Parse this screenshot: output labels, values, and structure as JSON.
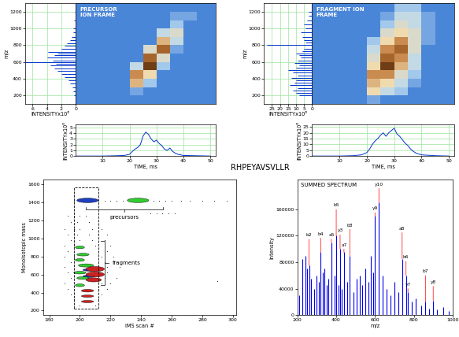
{
  "title": "RHPEYAVSVLLR",
  "chart_data": [
    {
      "type": "bar",
      "orientation": "horizontal",
      "color": "#0033cc",
      "grid": true,
      "xlabel": "INTENSITYx10⁶",
      "ylabel": "m/z",
      "x": [
        200,
        250,
        300,
        340,
        380,
        420,
        460,
        490,
        520,
        560,
        580,
        600,
        620,
        650,
        680,
        700,
        720,
        760,
        790,
        820,
        860,
        900,
        950,
        1000,
        1100,
        1200
      ],
      "values": [
        0.2,
        0.3,
        0.5,
        0.8,
        1.0,
        1.5,
        2.0,
        2.5,
        3.0,
        3.5,
        2.8,
        7.0,
        3.2,
        4.0,
        3.0,
        2.5,
        3.8,
        2.0,
        1.5,
        1.2,
        0.8,
        0.6,
        0.4,
        0.3,
        0.2,
        0.1
      ],
      "xlim": [
        7,
        0
      ],
      "xticks": [
        6,
        4,
        2,
        0
      ],
      "ylim": [
        100,
        1300
      ],
      "yticks": [
        200,
        400,
        600,
        800,
        1000,
        1200
      ]
    },
    {
      "type": "heatmap",
      "title": "PRECURSOR\nION FRAME",
      "tick_labels": false,
      "xlim": [
        0,
        52
      ],
      "ylim": [
        100,
        1300
      ],
      "color_range": [
        0,
        1
      ],
      "x_bins": [
        0,
        5,
        10,
        15,
        20,
        25,
        30,
        35,
        40,
        45,
        50
      ],
      "y_bins": [
        100,
        200,
        300,
        400,
        500,
        600,
        700,
        800,
        900,
        1000,
        1100,
        1200,
        1300
      ],
      "cells": [
        [
          0,
          0,
          0,
          0,
          0,
          0,
          0,
          0,
          0,
          0
        ],
        [
          0,
          0,
          0,
          0,
          0.1,
          0,
          0,
          0,
          0,
          0
        ],
        [
          0,
          0,
          0,
          0,
          0.6,
          0.2,
          0,
          0,
          0,
          0
        ],
        [
          0,
          0,
          0,
          0,
          0.7,
          0.5,
          0,
          0,
          0,
          0
        ],
        [
          0,
          0,
          0,
          0,
          0.3,
          0.9,
          0.2,
          0,
          0,
          0
        ],
        [
          0,
          0,
          0,
          0,
          0,
          0.8,
          0.4,
          0,
          0,
          0
        ],
        [
          0,
          0,
          0,
          0,
          0,
          0.4,
          0.8,
          0.1,
          0,
          0
        ],
        [
          0,
          0,
          0,
          0,
          0,
          0,
          0.6,
          0.3,
          0,
          0
        ],
        [
          0,
          0,
          0,
          0,
          0,
          0,
          0.3,
          0.4,
          0,
          0
        ],
        [
          0,
          0,
          0,
          0,
          0,
          0,
          0,
          0.2,
          0,
          0
        ],
        [
          0,
          0,
          0,
          0,
          0,
          0,
          0,
          0.1,
          0.1,
          0
        ],
        [
          0,
          0,
          0,
          0,
          0,
          0,
          0,
          0,
          0,
          0
        ]
      ]
    },
    {
      "type": "line",
      "color": "#0033cc",
      "grid": true,
      "xlabel": "TIME, ms",
      "ylabel": "INTENSITYx10⁶",
      "x": [
        0,
        10,
        15,
        18,
        20,
        21,
        22,
        23,
        24,
        25,
        26,
        27,
        28,
        29,
        30,
        31,
        32,
        33,
        34,
        35,
        36,
        37,
        38,
        40,
        45,
        50
      ],
      "values": [
        0,
        0,
        0.05,
        0.1,
        0.3,
        0.8,
        1.2,
        1.5,
        2.0,
        3.5,
        4.2,
        3.8,
        3.0,
        2.5,
        2.8,
        2.2,
        1.8,
        1.2,
        1.0,
        1.4,
        0.8,
        0.5,
        0.3,
        0.1,
        0.05,
        0
      ],
      "xlim": [
        0,
        52
      ],
      "xticks": [
        10,
        20,
        30,
        40,
        50
      ],
      "ylim": [
        0,
        5.5
      ],
      "yticks": [
        0,
        1,
        2,
        3,
        4,
        5
      ]
    },
    {
      "type": "bar",
      "orientation": "horizontal",
      "color": "#0033cc",
      "grid": true,
      "xlabel": "INTENSITYx10⁶",
      "ylabel": "m/z",
      "x": [
        200,
        230,
        260,
        290,
        320,
        350,
        380,
        410,
        440,
        470,
        500,
        530,
        560,
        590,
        620,
        650,
        680,
        700,
        730,
        760,
        800,
        830,
        860,
        900,
        950,
        1000,
        1050,
        1100,
        1150,
        1200
      ],
      "values": [
        8,
        10,
        12,
        9,
        14,
        11,
        10,
        13,
        9,
        12,
        15,
        10,
        8,
        11,
        9,
        7,
        8,
        10,
        6,
        5,
        28,
        4,
        5,
        6,
        7,
        4,
        5,
        3,
        2,
        2
      ],
      "xlim": [
        30,
        0
      ],
      "xticks": [
        25,
        20,
        15,
        10,
        5,
        0
      ],
      "ylim": [
        100,
        1300
      ],
      "yticks": [
        200,
        400,
        600,
        800,
        1000,
        1200
      ]
    },
    {
      "type": "heatmap",
      "title": "FRAGMENT ION\nFRAME",
      "tick_labels": false,
      "xlim": [
        0,
        52
      ],
      "ylim": [
        100,
        1300
      ],
      "color_range": [
        0,
        1
      ],
      "x_bins": [
        0,
        5,
        10,
        15,
        20,
        25,
        30,
        35,
        40,
        45,
        50
      ],
      "y_bins": [
        100,
        200,
        300,
        400,
        500,
        600,
        700,
        800,
        900,
        1000,
        1100,
        1200,
        1300
      ],
      "cells": [
        [
          0,
          0,
          0,
          0,
          0.1,
          0,
          0,
          0,
          0,
          0
        ],
        [
          0,
          0,
          0,
          0,
          0.5,
          0.3,
          0.2,
          0,
          0,
          0
        ],
        [
          0,
          0,
          0,
          0,
          0.6,
          0.5,
          0.3,
          0.1,
          0,
          0
        ],
        [
          0,
          0,
          0,
          0,
          0.7,
          0.7,
          0.4,
          0.2,
          0,
          0
        ],
        [
          0,
          0,
          0,
          0,
          0.5,
          0.9,
          0.6,
          0.3,
          0,
          0
        ],
        [
          0,
          0,
          0,
          0,
          0.4,
          0.8,
          0.7,
          0.3,
          0,
          0
        ],
        [
          0,
          0,
          0,
          0,
          0.3,
          0.7,
          0.8,
          0.4,
          0,
          0
        ],
        [
          0,
          0,
          0,
          0,
          0.2,
          0.5,
          0.7,
          0.4,
          0.1,
          0
        ],
        [
          0,
          0,
          0,
          0,
          0,
          0.4,
          0.5,
          0.4,
          0.1,
          0
        ],
        [
          0,
          0,
          0,
          0,
          0,
          0.2,
          0.4,
          0.3,
          0.1,
          0
        ],
        [
          0,
          0,
          0,
          0,
          0,
          0.1,
          0.3,
          0.3,
          0.1,
          0
        ],
        [
          0,
          0,
          0,
          0,
          0,
          0,
          0.2,
          0.2,
          0,
          0
        ]
      ]
    },
    {
      "type": "line",
      "color": "#0033cc",
      "grid": true,
      "xlabel": "TIME, ms",
      "ylabel": "INTENSITYx10⁶",
      "x": [
        0,
        10,
        15,
        18,
        20,
        21,
        22,
        23,
        24,
        25,
        26,
        27,
        28,
        29,
        30,
        31,
        32,
        33,
        34,
        35,
        36,
        37,
        38,
        40,
        45,
        50
      ],
      "values": [
        0,
        0,
        0.3,
        1,
        3,
        6,
        10,
        13,
        15,
        18,
        20,
        17,
        20,
        22,
        24,
        19,
        17,
        14,
        11,
        9,
        6,
        4,
        2.5,
        1,
        0.3,
        0
      ],
      "xlim": [
        0,
        52
      ],
      "xticks": [
        10,
        20,
        30,
        40,
        50
      ],
      "ylim": [
        0,
        27
      ],
      "yticks": [
        0,
        5,
        10,
        15,
        20,
        25
      ]
    },
    {
      "type": "scatter",
      "xlabel": "IMS scan #",
      "ylabel": "Monoisotopic mass",
      "xlim": [
        176,
        302
      ],
      "xticks": [
        180,
        200,
        220,
        240,
        260,
        280,
        300
      ],
      "ylim": [
        150,
        1650
      ],
      "yticks": [
        200,
        400,
        600,
        800,
        1000,
        1200,
        1400,
        1600
      ],
      "annotations": [
        "precursors",
        "fragments"
      ],
      "box": {
        "x": [
          196,
          212
        ],
        "y": [
          220,
          1560
        ]
      },
      "series": [
        {
          "color": "#000000",
          "marker": "dot",
          "x": [
            196,
            199,
            202,
            208,
            212,
            216,
            220,
            224,
            228,
            232,
            244,
            248,
            252,
            256,
            260,
            266,
            272,
            280,
            288,
            296,
            246,
            250,
            254,
            258,
            262,
            192,
            196,
            200,
            204,
            194,
            198,
            206,
            190,
            196,
            200,
            208,
            214,
            192,
            198,
            206,
            212,
            218,
            194,
            200,
            208,
            216,
            190,
            196,
            210,
            220,
            192,
            212,
            218,
            190,
            196,
            214,
            222,
            194,
            216,
            224,
            190,
            218,
            226,
            192,
            218,
            194,
            216,
            224,
            190,
            214,
            220,
            192,
            212,
            218,
            194,
            214,
            196,
            212,
            200,
            210,
            290
          ],
          "values": [
            1420,
            1420,
            1420,
            1420,
            1420,
            1420,
            1420,
            1420,
            1420,
            1420,
            1420,
            1420,
            1420,
            1420,
            1420,
            1420,
            1420,
            1420,
            1420,
            1420,
            1280,
            1280,
            1280,
            1280,
            1280,
            1250,
            1250,
            1250,
            1250,
            1180,
            1180,
            1180,
            1100,
            1100,
            1100,
            1100,
            1100,
            1040,
            1040,
            1040,
            1040,
            1040,
            980,
            980,
            980,
            980,
            920,
            920,
            920,
            920,
            860,
            860,
            860,
            800,
            800,
            800,
            800,
            740,
            740,
            740,
            680,
            680,
            680,
            620,
            620,
            560,
            560,
            560,
            500,
            500,
            500,
            440,
            440,
            440,
            380,
            380,
            330,
            330,
            260,
            260,
            530
          ]
        },
        {
          "color": "#1f3fbf",
          "marker": "ellipse",
          "x": [
            205,
            206,
            206
          ],
          "values": [
            1420,
            580,
            650
          ],
          "widths": [
            14,
            8,
            8
          ],
          "heights": [
            50,
            25,
            25
          ]
        },
        {
          "color": "#33cc33",
          "marker": "ellipse",
          "x": [
            238,
            200,
            202,
            200,
            204,
            200,
            202,
            200
          ],
          "values": [
            1420,
            900,
            820,
            760,
            700,
            620,
            560,
            480
          ],
          "widths": [
            14,
            6,
            8,
            6,
            10,
            8,
            8,
            6
          ],
          "heights": [
            50,
            30,
            30,
            30,
            35,
            30,
            30,
            30
          ]
        },
        {
          "color": "#cc2222",
          "marker": "ellipse",
          "x": [
            210,
            210,
            209,
            205,
            205,
            205
          ],
          "values": [
            660,
            600,
            540,
            420,
            360,
            300
          ],
          "widths": [
            12,
            12,
            10,
            8,
            8,
            8
          ],
          "heights": [
            55,
            55,
            45,
            30,
            25,
            25
          ]
        }
      ]
    },
    {
      "type": "bar",
      "title": "SUMMED SPECTRUM",
      "color": "#0000ee",
      "xlabel": "m/z",
      "ylabel": "Intensity",
      "x": [
        210,
        225,
        240,
        250,
        260,
        270,
        285,
        300,
        310,
        320,
        330,
        340,
        350,
        360,
        375,
        390,
        400,
        410,
        420,
        430,
        440,
        455,
        470,
        490,
        505,
        520,
        535,
        550,
        565,
        580,
        590,
        600,
        620,
        640,
        660,
        680,
        700,
        720,
        740,
        760,
        770,
        790,
        810,
        840,
        860,
        880,
        900,
        920,
        950,
        980
      ],
      "values": [
        30000,
        85000,
        90000,
        70000,
        75000,
        55000,
        40000,
        60000,
        50000,
        95000,
        65000,
        70000,
        45000,
        55000,
        110000,
        60000,
        120000,
        45000,
        100000,
        40000,
        95000,
        50000,
        90000,
        35000,
        55000,
        60000,
        45000,
        70000,
        50000,
        90000,
        65000,
        150000,
        170000,
        60000,
        40000,
        30000,
        50000,
        35000,
        85000,
        60000,
        35000,
        20000,
        25000,
        15000,
        20000,
        10000,
        22000,
        8000,
        12000,
        6000
      ],
      "annotations": [
        {
          "x": 260,
          "label": "b2"
        },
        {
          "x": 320,
          "label": "b4"
        },
        {
          "x": 375,
          "label": "a5"
        },
        {
          "x": 400,
          "label": "b5"
        },
        {
          "x": 420,
          "label": "y3"
        },
        {
          "x": 440,
          "label": "a7"
        },
        {
          "x": 470,
          "label": "b8"
        },
        {
          "x": 620,
          "label": "y10"
        },
        {
          "x": 600,
          "label": "y9"
        },
        {
          "x": 740,
          "label": "a8"
        },
        {
          "x": 760,
          "label": "b6"
        },
        {
          "x": 770,
          "label": "y7"
        },
        {
          "x": 860,
          "label": "b7"
        },
        {
          "x": 900,
          "label": "y8"
        }
      ],
      "xlim": [
        200,
        1000
      ],
      "xticks": [
        200,
        400,
        600,
        800,
        1000
      ],
      "ylim": [
        0,
        205000
      ],
      "yticks": [
        0,
        40000,
        80000,
        120000,
        160000
      ]
    }
  ]
}
